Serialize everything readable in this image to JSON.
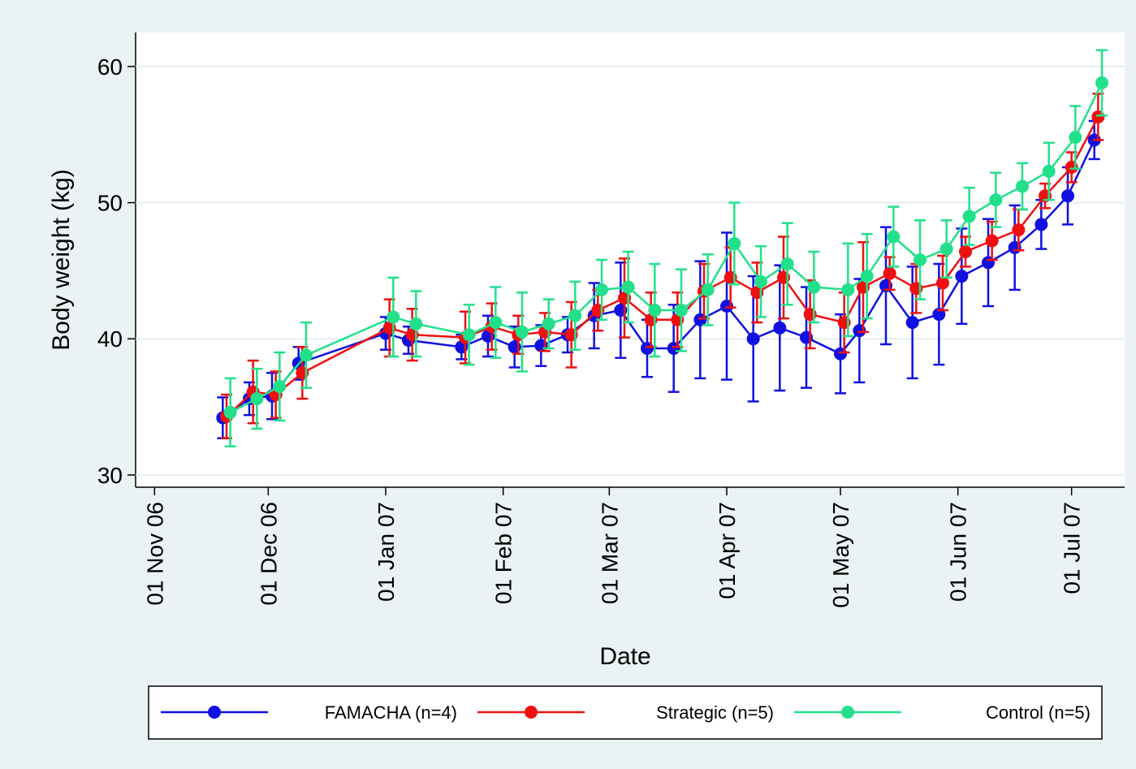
{
  "chart_data": {
    "type": "line",
    "y_label": "Body weight (kg)",
    "x_label": "Date",
    "xlim": [
      "2006-10-27",
      "2007-07-15"
    ],
    "xticks": [
      {
        "value": "2006-11-01",
        "label": "01 Nov 06"
      },
      {
        "value": "2006-12-01",
        "label": "01 Dec 06"
      },
      {
        "value": "2007-01-01",
        "label": "01 Jan 07"
      },
      {
        "value": "2007-02-01",
        "label": "01 Feb 07"
      },
      {
        "value": "2007-03-01",
        "label": "01 Mar 07"
      },
      {
        "value": "2007-04-01",
        "label": "01 Apr 07"
      },
      {
        "value": "2007-05-01",
        "label": "01 May 07"
      },
      {
        "value": "2007-06-01",
        "label": "01 Jun 07"
      },
      {
        "value": "2007-07-01",
        "label": "01 Jul 07"
      }
    ],
    "ylim": [
      29.1,
      62.5
    ],
    "yticks": [
      30,
      40,
      50,
      60
    ],
    "grid": true,
    "series": [
      {
        "name": "FAMACHA (n=4)",
        "color": "#1010e0",
        "x": [
          "2006-11-19",
          "2006-11-26",
          "2006-12-02",
          "2006-12-09",
          "2007-01-01",
          "2007-01-07",
          "2007-01-21",
          "2007-01-28",
          "2007-02-04",
          "2007-02-11",
          "2007-02-18",
          "2007-02-25",
          "2007-03-04",
          "2007-03-11",
          "2007-03-18",
          "2007-03-25",
          "2007-04-01",
          "2007-04-08",
          "2007-04-15",
          "2007-04-22",
          "2007-05-01",
          "2007-05-06",
          "2007-05-13",
          "2007-05-20",
          "2007-05-27",
          "2007-06-02",
          "2007-06-09",
          "2007-06-16",
          "2007-06-23",
          "2007-06-30",
          "2007-07-07"
        ],
        "values": [
          34.2,
          35.6,
          35.8,
          38.2,
          40.4,
          39.9,
          39.4,
          40.2,
          39.4,
          39.5,
          40.3,
          41.7,
          42.1,
          39.3,
          39.3,
          41.4,
          42.4,
          40.0,
          40.8,
          40.1,
          38.9,
          40.6,
          43.9,
          41.2,
          41.8,
          44.6,
          45.6,
          46.7,
          48.4,
          50.5,
          54.6
        ],
        "errors": [
          1.5,
          1.2,
          1.7,
          1.2,
          1.2,
          1.0,
          0.9,
          1.5,
          1.5,
          1.5,
          1.3,
          2.4,
          3.5,
          2.1,
          3.2,
          4.3,
          5.4,
          4.6,
          4.6,
          3.7,
          2.9,
          3.8,
          4.3,
          4.1,
          3.7,
          3.5,
          3.2,
          3.1,
          1.8,
          2.1,
          1.4
        ]
      },
      {
        "name": "Strategic (n=5)",
        "color": "#ee1010",
        "x": [
          "2006-11-20",
          "2006-11-27",
          "2006-12-03",
          "2006-12-10",
          "2007-01-02",
          "2007-01-08",
          "2007-01-22",
          "2007-01-29",
          "2007-02-05",
          "2007-02-12",
          "2007-02-19",
          "2007-02-26",
          "2007-03-05",
          "2007-03-12",
          "2007-03-19",
          "2007-03-26",
          "2007-04-02",
          "2007-04-09",
          "2007-04-16",
          "2007-04-23",
          "2007-05-02",
          "2007-05-07",
          "2007-05-14",
          "2007-05-21",
          "2007-05-28",
          "2007-06-03",
          "2007-06-10",
          "2007-06-17",
          "2007-06-24",
          "2007-07-01",
          "2007-07-08"
        ],
        "values": [
          34.3,
          36.1,
          35.9,
          37.5,
          40.8,
          40.3,
          40.1,
          40.9,
          40.3,
          40.5,
          40.3,
          42.1,
          43.0,
          41.4,
          41.4,
          43.5,
          44.5,
          43.4,
          44.5,
          41.8,
          41.2,
          43.8,
          44.8,
          43.7,
          44.1,
          46.4,
          47.2,
          48.0,
          50.5,
          52.6,
          56.3
        ],
        "errors": [
          1.6,
          2.3,
          1.7,
          1.9,
          2.1,
          1.9,
          1.9,
          1.7,
          1.4,
          1.4,
          2.4,
          1.5,
          2.9,
          2.0,
          2.0,
          2.0,
          2.2,
          2.2,
          3.0,
          2.5,
          2.2,
          3.3,
          1.2,
          1.8,
          2.0,
          1.1,
          1.4,
          1.5,
          0.9,
          1.1,
          1.7
        ]
      },
      {
        "name": "Control (n=5)",
        "color": "#22e08a",
        "x": [
          "2006-11-21",
          "2006-11-28",
          "2006-12-04",
          "2006-12-11",
          "2007-01-03",
          "2007-01-09",
          "2007-01-23",
          "2007-01-30",
          "2007-02-06",
          "2007-02-13",
          "2007-02-20",
          "2007-02-27",
          "2007-03-06",
          "2007-03-13",
          "2007-03-20",
          "2007-03-27",
          "2007-04-03",
          "2007-04-10",
          "2007-04-17",
          "2007-04-24",
          "2007-05-03",
          "2007-05-08",
          "2007-05-15",
          "2007-05-22",
          "2007-05-29",
          "2007-06-04",
          "2007-06-11",
          "2007-06-18",
          "2007-06-25",
          "2007-07-02",
          "2007-07-09"
        ],
        "values": [
          34.6,
          35.6,
          36.5,
          38.8,
          41.6,
          41.1,
          40.3,
          41.2,
          40.5,
          41.1,
          41.7,
          43.6,
          43.8,
          42.1,
          42.1,
          43.6,
          47.0,
          44.2,
          45.5,
          43.8,
          43.6,
          44.6,
          47.5,
          45.8,
          46.6,
          49.0,
          50.2,
          51.2,
          52.3,
          54.8,
          58.8
        ],
        "errors": [
          2.5,
          2.2,
          2.5,
          2.4,
          2.9,
          2.4,
          2.2,
          2.6,
          2.9,
          1.8,
          2.5,
          2.2,
          2.6,
          3.4,
          3.0,
          2.6,
          3.0,
          2.6,
          3.0,
          2.6,
          3.4,
          3.1,
          2.2,
          2.9,
          2.1,
          2.1,
          2.0,
          1.7,
          2.1,
          2.3,
          2.4
        ]
      }
    ]
  }
}
